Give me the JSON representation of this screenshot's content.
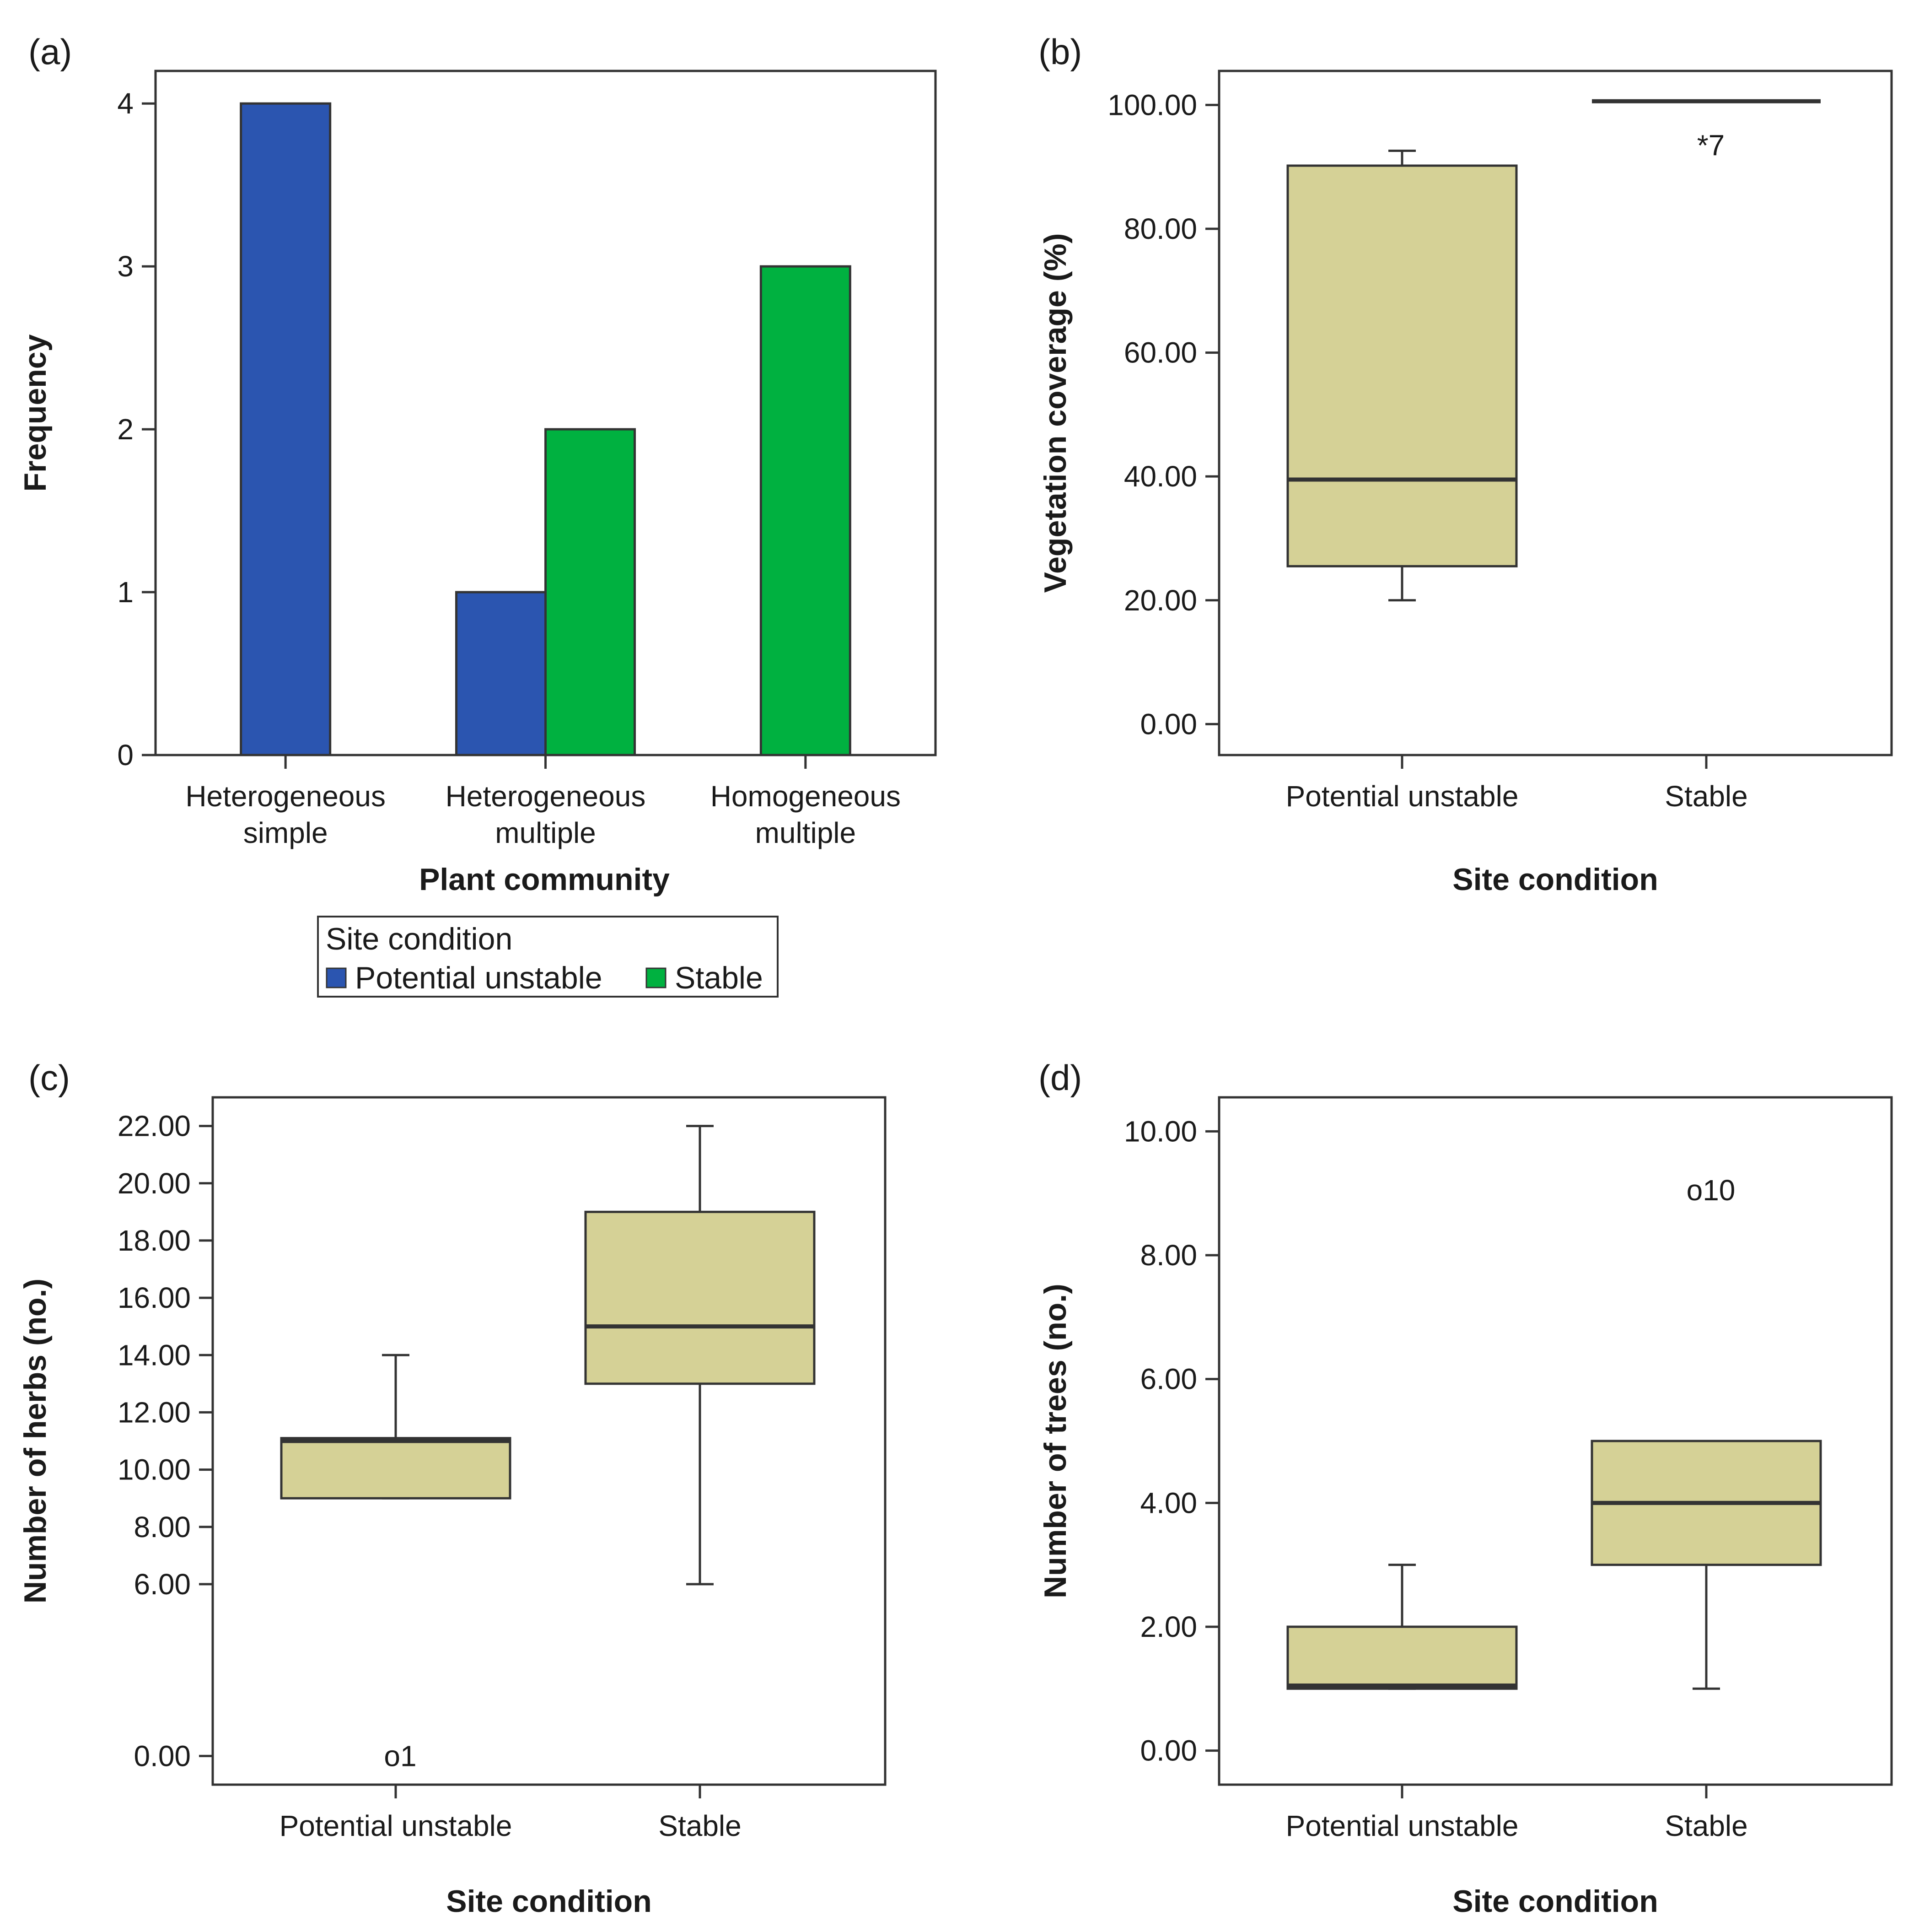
{
  "colors": {
    "potential_unstable": "#2b55b0",
    "stable": "#00b140",
    "box_fill": "#d5d196"
  },
  "chart_data": [
    {
      "id": "a",
      "panel_label": "(a)",
      "type": "bar",
      "xlabel": "Plant community",
      "ylabel": "Frequency",
      "ylim": [
        0,
        4.2
      ],
      "yticks": [
        {
          "value": 0,
          "label": "0"
        },
        {
          "value": 1,
          "label": "1"
        },
        {
          "value": 2,
          "label": "2"
        },
        {
          "value": 3,
          "label": "3"
        },
        {
          "value": 4,
          "label": "4"
        }
      ],
      "categories": [
        {
          "line1": "Heterogeneous",
          "line2": "simple"
        },
        {
          "line1": "Heterogeneous",
          "line2": "multiple"
        },
        {
          "line1": "Homogeneous",
          "line2": "multiple"
        }
      ],
      "series": [
        {
          "name": "Potential unstable",
          "color_key": "potential_unstable",
          "values": [
            4,
            1,
            0
          ]
        },
        {
          "name": "Stable",
          "color_key": "stable",
          "values": [
            0,
            2,
            3
          ]
        }
      ],
      "legend": {
        "title": "Site condition",
        "position": "bottom",
        "entries": [
          "Potential unstable",
          "Stable"
        ]
      }
    },
    {
      "id": "b",
      "panel_label": "(b)",
      "type": "box",
      "xlabel": "Site condition",
      "ylabel": "Vegetation coverage (%)",
      "ylim": [
        -5,
        105.5
      ],
      "yticks": [
        {
          "value": 0,
          "label": "0.00"
        },
        {
          "value": 20,
          "label": "20.00"
        },
        {
          "value": 40,
          "label": "40.00"
        },
        {
          "value": 60,
          "label": "60.00"
        },
        {
          "value": 80,
          "label": "80.00"
        },
        {
          "value": 100,
          "label": "100.00"
        }
      ],
      "groups": [
        {
          "name": "Potential unstable",
          "min": 20,
          "q1": 25.5,
          "median": 39.5,
          "q3": 90.2,
          "max": 92.6,
          "outliers": []
        },
        {
          "name": "Stable",
          "min": 100.6,
          "q1": 100.6,
          "median": 100.6,
          "q3": 100.6,
          "max": 100.6,
          "outliers": [
            {
              "value": 93.5,
              "label": "*7"
            }
          ]
        }
      ]
    },
    {
      "id": "c",
      "panel_label": "(c)",
      "type": "box",
      "xlabel": "Site condition",
      "ylabel": "Number of herbs (no.)",
      "ylim": [
        -1,
        23
      ],
      "yticks": [
        {
          "value": 0,
          "label": "0.00"
        },
        {
          "value": 6,
          "label": "6.00"
        },
        {
          "value": 8,
          "label": "8.00"
        },
        {
          "value": 10,
          "label": "10.00"
        },
        {
          "value": 12,
          "label": "12.00"
        },
        {
          "value": 14,
          "label": "14.00"
        },
        {
          "value": 16,
          "label": "16.00"
        },
        {
          "value": 18,
          "label": "18.00"
        },
        {
          "value": 20,
          "label": "20.00"
        },
        {
          "value": 22,
          "label": "22.00"
        }
      ],
      "groups": [
        {
          "name": "Potential unstable",
          "min": 9,
          "q1": 9,
          "median": 11,
          "q3": 11.1,
          "max": 14,
          "outliers": [
            {
              "value": 0,
              "label": "o1"
            }
          ]
        },
        {
          "name": "Stable",
          "min": 6,
          "q1": 13,
          "median": 15,
          "q3": 19,
          "max": 22,
          "outliers": []
        }
      ]
    },
    {
      "id": "d",
      "panel_label": "(d)",
      "type": "box",
      "xlabel": "Site condition",
      "ylabel": "Number of trees (no.)",
      "ylim": [
        -0.55,
        10.55
      ],
      "yticks": [
        {
          "value": 0,
          "label": "0.00"
        },
        {
          "value": 2,
          "label": "2.00"
        },
        {
          "value": 4,
          "label": "4.00"
        },
        {
          "value": 6,
          "label": "6.00"
        },
        {
          "value": 8,
          "label": "8.00"
        },
        {
          "value": 10,
          "label": "10.00"
        }
      ],
      "groups": [
        {
          "name": "Potential unstable",
          "min": 1,
          "q1": 1,
          "median": 1.05,
          "q3": 2,
          "max": 3,
          "outliers": []
        },
        {
          "name": "Stable",
          "min": 1,
          "q1": 3,
          "median": 4,
          "q3": 5,
          "max": 5,
          "outliers": [
            {
              "value": 9.05,
              "label": "o10"
            }
          ]
        }
      ]
    }
  ]
}
